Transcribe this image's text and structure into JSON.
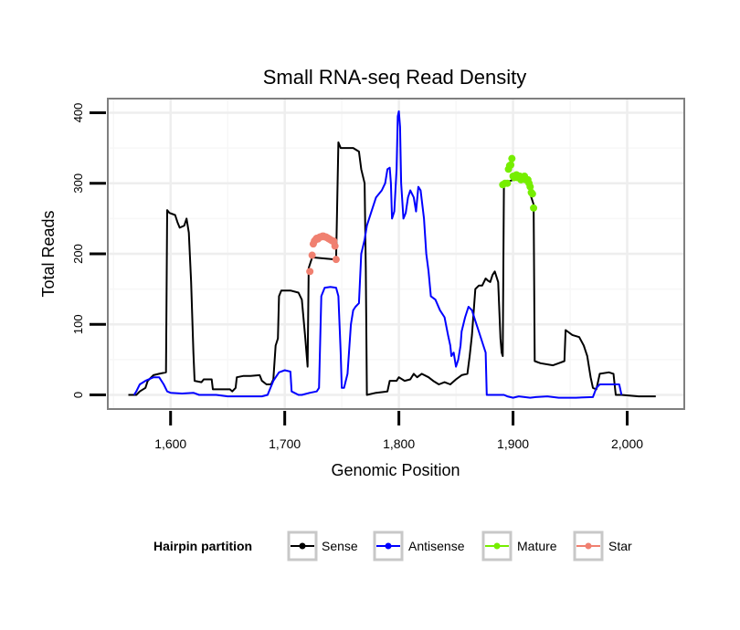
{
  "chart_data": {
    "type": "line",
    "title": "Small RNA-seq Read Density",
    "xlabel": "Genomic Position",
    "ylabel": "Total Reads",
    "xlim": [
      1545,
      2050
    ],
    "ylim": [
      -20,
      420
    ],
    "x_ticks": [
      1600,
      1700,
      1800,
      1900,
      2000
    ],
    "x_tick_labels": [
      "1,600",
      "1,700",
      "1,800",
      "1,900",
      "2,000"
    ],
    "y_ticks": [
      0,
      100,
      200,
      300,
      400
    ],
    "y_tick_labels": [
      "0",
      "100",
      "200",
      "300",
      "400"
    ],
    "grid": true,
    "legend": {
      "title": "Hairpin partition",
      "position": "bottom",
      "entries": [
        "Sense",
        "Antisense",
        "Mature",
        "Star"
      ]
    },
    "series": [
      {
        "name": "Sense",
        "color": "#000000",
        "style": "line",
        "points": [
          [
            1563,
            0
          ],
          [
            1570,
            0
          ],
          [
            1573,
            5
          ],
          [
            1578,
            10
          ],
          [
            1580,
            20
          ],
          [
            1585,
            28
          ],
          [
            1590,
            30
          ],
          [
            1596,
            32
          ],
          [
            1597,
            262
          ],
          [
            1599,
            258
          ],
          [
            1604,
            255
          ],
          [
            1606,
            245
          ],
          [
            1608,
            237
          ],
          [
            1612,
            240
          ],
          [
            1614,
            250
          ],
          [
            1616,
            230
          ],
          [
            1618,
            160
          ],
          [
            1620,
            60
          ],
          [
            1621,
            20
          ],
          [
            1627,
            18
          ],
          [
            1629,
            22
          ],
          [
            1636,
            22
          ],
          [
            1637,
            8
          ],
          [
            1652,
            8
          ],
          [
            1654,
            5
          ],
          [
            1657,
            10
          ],
          [
            1658,
            25
          ],
          [
            1664,
            27
          ],
          [
            1670,
            27
          ],
          [
            1678,
            28
          ],
          [
            1680,
            20
          ],
          [
            1684,
            15
          ],
          [
            1688,
            15
          ],
          [
            1690,
            22
          ],
          [
            1692,
            70
          ],
          [
            1694,
            80
          ],
          [
            1695,
            140
          ],
          [
            1697,
            148
          ],
          [
            1705,
            148
          ],
          [
            1712,
            145
          ],
          [
            1715,
            135
          ],
          [
            1718,
            80
          ],
          [
            1720,
            40
          ],
          [
            1721,
            180
          ],
          [
            1724,
            195
          ],
          [
            1745,
            192
          ],
          [
            1747,
            358
          ],
          [
            1749,
            350
          ],
          [
            1760,
            350
          ],
          [
            1765,
            345
          ],
          [
            1767,
            320
          ],
          [
            1770,
            300
          ],
          [
            1771,
            180
          ],
          [
            1772,
            0
          ],
          [
            1780,
            3
          ],
          [
            1790,
            5
          ],
          [
            1792,
            20
          ],
          [
            1798,
            20
          ],
          [
            1800,
            25
          ],
          [
            1805,
            20
          ],
          [
            1810,
            22
          ],
          [
            1813,
            30
          ],
          [
            1816,
            25
          ],
          [
            1820,
            30
          ],
          [
            1826,
            25
          ],
          [
            1830,
            20
          ],
          [
            1835,
            15
          ],
          [
            1840,
            18
          ],
          [
            1845,
            15
          ],
          [
            1850,
            22
          ],
          [
            1855,
            28
          ],
          [
            1860,
            30
          ],
          [
            1862,
            55
          ],
          [
            1864,
            85
          ],
          [
            1867,
            150
          ],
          [
            1870,
            155
          ],
          [
            1873,
            155
          ],
          [
            1876,
            165
          ],
          [
            1878,
            162
          ],
          [
            1880,
            160
          ],
          [
            1882,
            170
          ],
          [
            1884,
            175
          ],
          [
            1887,
            160
          ],
          [
            1889,
            80
          ],
          [
            1890,
            60
          ],
          [
            1891,
            55
          ],
          [
            1892,
            300
          ],
          [
            1900,
            305
          ],
          [
            1912,
            310
          ],
          [
            1916,
            280
          ],
          [
            1918,
            270
          ],
          [
            1919,
            48
          ],
          [
            1924,
            45
          ],
          [
            1935,
            42
          ],
          [
            1940,
            45
          ],
          [
            1945,
            48
          ],
          [
            1946,
            92
          ],
          [
            1952,
            85
          ],
          [
            1958,
            82
          ],
          [
            1962,
            70
          ],
          [
            1965,
            55
          ],
          [
            1968,
            25
          ],
          [
            1970,
            10
          ],
          [
            1973,
            8
          ],
          [
            1976,
            30
          ],
          [
            1984,
            32
          ],
          [
            1988,
            30
          ],
          [
            1990,
            0
          ],
          [
            1995,
            0
          ],
          [
            2010,
            -2
          ],
          [
            2025,
            -2
          ]
        ]
      },
      {
        "name": "Antisense",
        "color": "#0000ff",
        "style": "line",
        "points": [
          [
            1568,
            0
          ],
          [
            1570,
            5
          ],
          [
            1573,
            15
          ],
          [
            1578,
            20
          ],
          [
            1585,
            25
          ],
          [
            1590,
            25
          ],
          [
            1594,
            15
          ],
          [
            1597,
            5
          ],
          [
            1600,
            3
          ],
          [
            1610,
            2
          ],
          [
            1620,
            3
          ],
          [
            1625,
            0
          ],
          [
            1640,
            0
          ],
          [
            1650,
            -2
          ],
          [
            1660,
            -2
          ],
          [
            1670,
            -2
          ],
          [
            1680,
            -2
          ],
          [
            1685,
            0
          ],
          [
            1690,
            20
          ],
          [
            1695,
            32
          ],
          [
            1700,
            35
          ],
          [
            1705,
            33
          ],
          [
            1706,
            5
          ],
          [
            1712,
            0
          ],
          [
            1715,
            0
          ],
          [
            1722,
            3
          ],
          [
            1728,
            5
          ],
          [
            1730,
            10
          ],
          [
            1732,
            140
          ],
          [
            1735,
            152
          ],
          [
            1740,
            153
          ],
          [
            1745,
            152
          ],
          [
            1747,
            140
          ],
          [
            1749,
            60
          ],
          [
            1750,
            10
          ],
          [
            1752,
            10
          ],
          [
            1755,
            30
          ],
          [
            1758,
            100
          ],
          [
            1760,
            120
          ],
          [
            1762,
            125
          ],
          [
            1765,
            130
          ],
          [
            1767,
            200
          ],
          [
            1770,
            220
          ],
          [
            1772,
            240
          ],
          [
            1776,
            260
          ],
          [
            1780,
            280
          ],
          [
            1785,
            290
          ],
          [
            1788,
            300
          ],
          [
            1790,
            320
          ],
          [
            1792,
            322
          ],
          [
            1793,
            300
          ],
          [
            1794,
            250
          ],
          [
            1796,
            260
          ],
          [
            1798,
            320
          ],
          [
            1799,
            395
          ],
          [
            1800,
            402
          ],
          [
            1801,
            380
          ],
          [
            1802,
            300
          ],
          [
            1804,
            250
          ],
          [
            1806,
            258
          ],
          [
            1808,
            280
          ],
          [
            1810,
            290
          ],
          [
            1813,
            280
          ],
          [
            1815,
            260
          ],
          [
            1817,
            295
          ],
          [
            1819,
            290
          ],
          [
            1822,
            250
          ],
          [
            1824,
            200
          ],
          [
            1826,
            175
          ],
          [
            1828,
            140
          ],
          [
            1832,
            135
          ],
          [
            1836,
            120
          ],
          [
            1840,
            110
          ],
          [
            1843,
            85
          ],
          [
            1845,
            70
          ],
          [
            1846,
            55
          ],
          [
            1848,
            60
          ],
          [
            1850,
            40
          ],
          [
            1852,
            50
          ],
          [
            1854,
            70
          ],
          [
            1855,
            90
          ],
          [
            1858,
            110
          ],
          [
            1861,
            125
          ],
          [
            1864,
            120
          ],
          [
            1867,
            105
          ],
          [
            1870,
            90
          ],
          [
            1874,
            70
          ],
          [
            1876,
            60
          ],
          [
            1877,
            0
          ],
          [
            1883,
            0
          ],
          [
            1888,
            0
          ],
          [
            1892,
            0
          ],
          [
            1895,
            -2
          ],
          [
            1900,
            -4
          ],
          [
            1905,
            -2
          ],
          [
            1910,
            -3
          ],
          [
            1915,
            -4
          ],
          [
            1920,
            -3
          ],
          [
            1930,
            -2
          ],
          [
            1940,
            -4
          ],
          [
            1955,
            -4
          ],
          [
            1970,
            -3
          ],
          [
            1973,
            10
          ],
          [
            1976,
            15
          ],
          [
            1984,
            15
          ],
          [
            1990,
            15
          ],
          [
            1993,
            15
          ],
          [
            1995,
            0
          ]
        ]
      },
      {
        "name": "Mature",
        "color": "#76ee00",
        "style": "points",
        "points": [
          [
            1891,
            298
          ],
          [
            1893,
            300
          ],
          [
            1895,
            300
          ],
          [
            1896,
            320
          ],
          [
            1897,
            325
          ],
          [
            1898,
            326
          ],
          [
            1899,
            335
          ],
          [
            1900,
            310
          ],
          [
            1901,
            308
          ],
          [
            1902,
            310
          ],
          [
            1903,
            312
          ],
          [
            1904,
            308
          ],
          [
            1905,
            310
          ],
          [
            1906,
            310
          ],
          [
            1907,
            305
          ],
          [
            1908,
            306
          ],
          [
            1909,
            308
          ],
          [
            1910,
            310
          ],
          [
            1911,
            305
          ],
          [
            1912,
            305
          ],
          [
            1913,
            305
          ],
          [
            1914,
            300
          ],
          [
            1915,
            295
          ],
          [
            1916,
            287
          ],
          [
            1917,
            285
          ],
          [
            1918,
            265
          ]
        ]
      },
      {
        "name": "Star",
        "color": "#f08070",
        "style": "points",
        "points": [
          [
            1722,
            175
          ],
          [
            1724,
            198
          ],
          [
            1725,
            214
          ],
          [
            1726,
            218
          ],
          [
            1727,
            220
          ],
          [
            1728,
            222
          ],
          [
            1729,
            221
          ],
          [
            1730,
            223
          ],
          [
            1731,
            224
          ],
          [
            1732,
            224
          ],
          [
            1733,
            225
          ],
          [
            1734,
            225
          ],
          [
            1735,
            224
          ],
          [
            1736,
            224
          ],
          [
            1737,
            223
          ],
          [
            1738,
            222
          ],
          [
            1739,
            221
          ],
          [
            1740,
            220
          ],
          [
            1741,
            219
          ],
          [
            1742,
            218
          ],
          [
            1743,
            218
          ],
          [
            1744,
            211
          ],
          [
            1745,
            192
          ]
        ]
      }
    ]
  }
}
